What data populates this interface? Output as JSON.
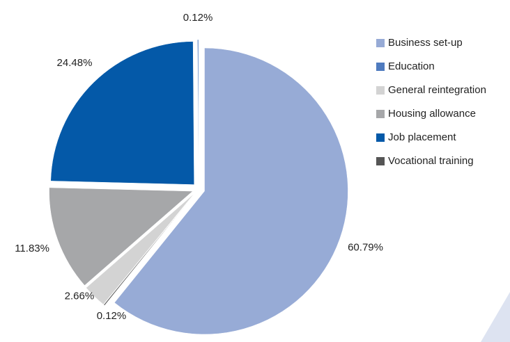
{
  "chart_data": {
    "type": "pie",
    "categories": [
      "Business set-up",
      "Vocational training",
      "General reintegration",
      "Housing allowance",
      "Job placement",
      "Education"
    ],
    "values": [
      60.79,
      0.12,
      2.66,
      11.83,
      24.48,
      0.12
    ],
    "value_labels": [
      "60.79%",
      "0.12%",
      "2.66%",
      "11.83%",
      "24.48%",
      "0.12%"
    ],
    "colors": [
      "#97abd6",
      "#555555",
      "#d3d3d3",
      "#a6a7a9",
      "#0459a8",
      "#4f7bbf"
    ],
    "legend": "right"
  }
}
